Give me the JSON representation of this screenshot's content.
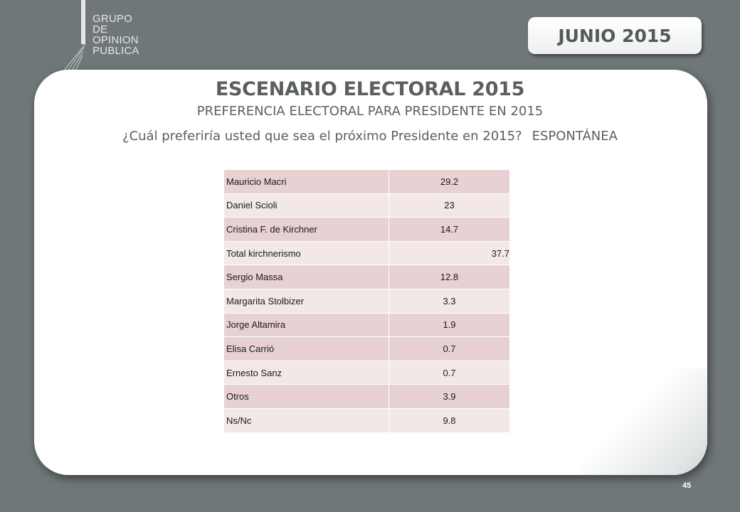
{
  "logo": {
    "lines": [
      "GRUPO",
      "DE",
      "OPINION",
      "PUBLICA"
    ]
  },
  "date_badge": "JUNIO 2015",
  "title": "ESCENARIO ELECTORAL 2015",
  "subtitle": "PREFERENCIA ELECTORAL PARA PRESIDENTE EN 2015",
  "question": {
    "text": "¿Cuál preferiría usted que sea el próximo Presidente en 2015?",
    "tag": "ESPONTÁNEA"
  },
  "table": {
    "rows": [
      {
        "name": "Mauricio Macri",
        "value": "29.2"
      },
      {
        "name": "Daniel Scioli",
        "value": "23"
      },
      {
        "name": "Cristina F. de Kirchner",
        "value": "14.7"
      },
      {
        "name": "Total kirchnerismo",
        "value": "37.7"
      },
      {
        "name": "Sergio Massa",
        "value": "12.8"
      },
      {
        "name": "Margarita Stolbizer",
        "value": "3.3"
      },
      {
        "name": "Jorge Altamira",
        "value": "1.9"
      },
      {
        "name": "Elisa Carrió",
        "value": "0.7"
      },
      {
        "name": "Ernesto Sanz",
        "value": "0.7"
      },
      {
        "name": "Otros",
        "value": "3.9"
      },
      {
        "name": "Ns/Nc",
        "value": "9.8"
      }
    ]
  },
  "page_number": "45",
  "colors": {
    "background": "#6f7779",
    "row_dark": "#e8d1d2",
    "row_light": "#f3e8e8",
    "text": "#5b5f61"
  }
}
